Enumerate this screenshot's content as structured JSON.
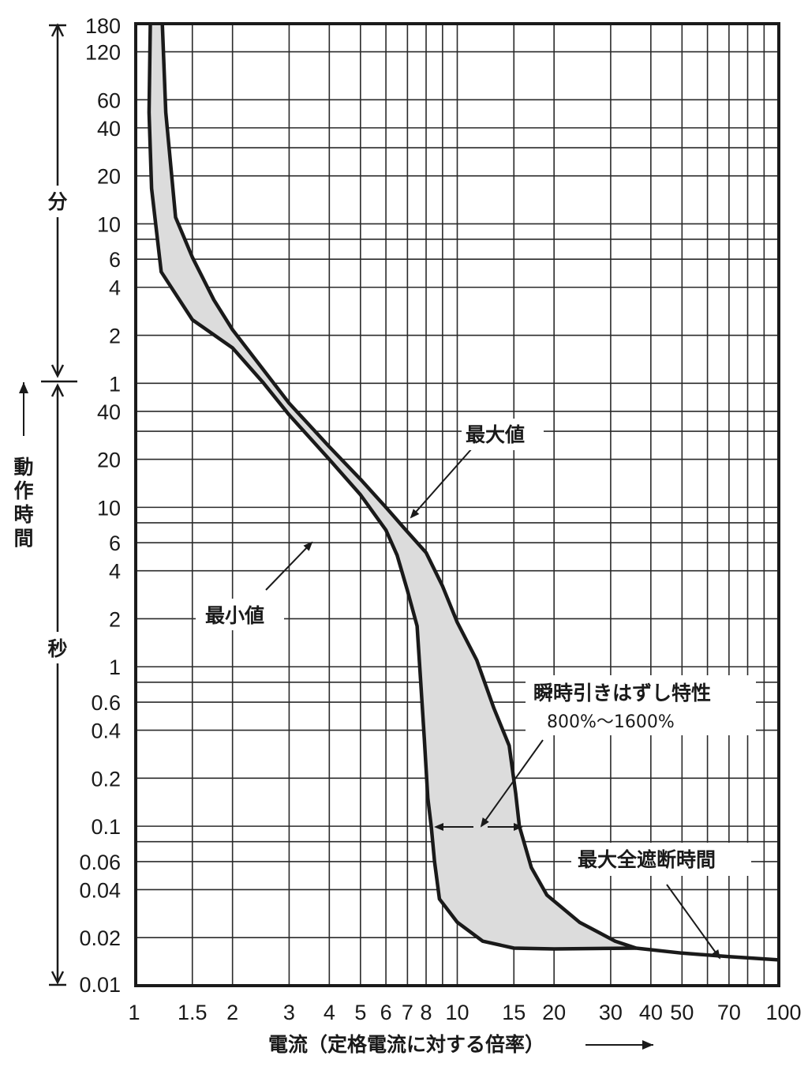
{
  "chart_data": {
    "type": "area",
    "xlabel": "電流（定格電流に対する倍率）",
    "x_scale": "log",
    "y_scale": "log",
    "xlim": [
      1,
      100
    ],
    "x_ticks": [
      {
        "v": 1,
        "label": "1"
      },
      {
        "v": 1.5,
        "label": "1.5"
      },
      {
        "v": 2,
        "label": "2"
      },
      {
        "v": 3,
        "label": "3"
      },
      {
        "v": 4,
        "label": "4"
      },
      {
        "v": 5,
        "label": "5"
      },
      {
        "v": 6,
        "label": "6"
      },
      {
        "v": 7,
        "label": "7"
      },
      {
        "v": 8,
        "label": "8"
      },
      {
        "v": 10,
        "label": "10"
      },
      {
        "v": 15,
        "label": "15"
      },
      {
        "v": 20,
        "label": "20"
      },
      {
        "v": 30,
        "label": "30"
      },
      {
        "v": 40,
        "label": "40"
      },
      {
        "v": 50,
        "label": "50"
      },
      {
        "v": 70,
        "label": "70"
      },
      {
        "v": 100,
        "label": "100"
      }
    ],
    "x_grid": [
      1.5,
      2,
      3,
      4,
      5,
      6,
      7,
      8,
      9,
      10,
      15,
      20,
      30,
      40,
      50,
      60,
      70,
      80,
      90
    ],
    "y_unit_note": "time in seconds; ticks above 1分 are in minutes",
    "ylim_seconds": [
      0.01,
      10800
    ],
    "y_ticks": [
      {
        "sec": 10800,
        "label": "180"
      },
      {
        "sec": 7200,
        "label": "120"
      },
      {
        "sec": 3600,
        "label": "60"
      },
      {
        "sec": 2400,
        "label": "40"
      },
      {
        "sec": 1200,
        "label": "20"
      },
      {
        "sec": 600,
        "label": "10"
      },
      {
        "sec": 360,
        "label": "6"
      },
      {
        "sec": 240,
        "label": "4"
      },
      {
        "sec": 120,
        "label": "2"
      },
      {
        "sec": 60,
        "label": "1"
      },
      {
        "sec": 40,
        "label": "40"
      },
      {
        "sec": 20,
        "label": "20"
      },
      {
        "sec": 10,
        "label": "10"
      },
      {
        "sec": 6,
        "label": "6"
      },
      {
        "sec": 4,
        "label": "4"
      },
      {
        "sec": 2,
        "label": "2"
      },
      {
        "sec": 1,
        "label": "1"
      },
      {
        "sec": 0.6,
        "label": "0.6"
      },
      {
        "sec": 0.4,
        "label": "0.4"
      },
      {
        "sec": 0.2,
        "label": "0.2"
      },
      {
        "sec": 0.1,
        "label": "0.1"
      },
      {
        "sec": 0.06,
        "label": "0.06"
      },
      {
        "sec": 0.04,
        "label": "0.04"
      },
      {
        "sec": 0.02,
        "label": "0.02"
      },
      {
        "sec": 0.01,
        "label": "0.01"
      }
    ],
    "y_grid_seconds": [
      7200,
      3600,
      2400,
      1800,
      1200,
      600,
      480,
      360,
      240,
      120,
      60,
      40,
      30,
      20,
      10,
      8,
      6,
      4,
      2,
      1,
      0.8,
      0.6,
      0.4,
      0.2,
      0.1,
      0.08,
      0.06,
      0.04,
      0.02
    ],
    "unit_labels": {
      "minutes": "分",
      "seconds": "秒",
      "axis_title": "動作時間"
    },
    "series": [
      {
        "name": "最大値",
        "points": [
          [
            1.21,
            10800
          ],
          [
            1.24,
            3000
          ],
          [
            1.33,
            660
          ],
          [
            1.5,
            370
          ],
          [
            1.75,
            200
          ],
          [
            2.0,
            130
          ],
          [
            3.0,
            45
          ],
          [
            4.0,
            24
          ],
          [
            5.0,
            15
          ],
          [
            6.0,
            10
          ],
          [
            6.8,
            7.5
          ],
          [
            8.0,
            5.2
          ],
          [
            9.0,
            3.2
          ],
          [
            10.0,
            1.9
          ],
          [
            11.5,
            1.1
          ],
          [
            13.0,
            0.55
          ],
          [
            14.5,
            0.32
          ],
          [
            15.2,
            0.16
          ],
          [
            15.6,
            0.1
          ],
          [
            17.0,
            0.055
          ],
          [
            19.0,
            0.037
          ],
          [
            24.0,
            0.025
          ],
          [
            31.0,
            0.019
          ],
          [
            36.0,
            0.0172
          ],
          [
            50.0,
            0.016
          ],
          [
            70.0,
            0.0152
          ],
          [
            100.0,
            0.0145
          ]
        ]
      },
      {
        "name": "最小値",
        "points": [
          [
            1.11,
            10800
          ],
          [
            1.1,
            3000
          ],
          [
            1.12,
            1000
          ],
          [
            1.2,
            300
          ],
          [
            1.5,
            150
          ],
          [
            2.0,
            100
          ],
          [
            2.5,
            60
          ],
          [
            3.0,
            38
          ],
          [
            4.0,
            20
          ],
          [
            5.0,
            12
          ],
          [
            6.0,
            7.2
          ],
          [
            6.5,
            5
          ],
          [
            7.0,
            3
          ],
          [
            7.5,
            1.8
          ],
          [
            7.7,
            0.8
          ],
          [
            7.9,
            0.35
          ],
          [
            8.1,
            0.15
          ],
          [
            8.3,
            0.1
          ],
          [
            8.5,
            0.06
          ],
          [
            8.8,
            0.035
          ],
          [
            10.0,
            0.025
          ],
          [
            12.0,
            0.019
          ],
          [
            15.0,
            0.0172
          ],
          [
            20.0,
            0.017
          ],
          [
            36.0,
            0.0172
          ]
        ]
      }
    ],
    "annotations": [
      {
        "text": "最大値"
      },
      {
        "text": "最小値"
      },
      {
        "text": "瞬時引きはずし特性"
      },
      {
        "text": "800%〜1600%"
      },
      {
        "text": "最大全遮断時間"
      }
    ]
  }
}
